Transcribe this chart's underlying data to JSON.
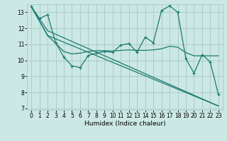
{
  "xlabel": "Humidex (Indice chaleur)",
  "bg_color": "#cce8e4",
  "grid_color": "#aaccca",
  "line_color": "#1a7a6e",
  "xlim": [
    -0.5,
    23.5
  ],
  "ylim": [
    6.9,
    13.5
  ],
  "yticks": [
    7,
    8,
    9,
    10,
    11,
    12,
    13
  ],
  "xticks": [
    0,
    1,
    2,
    3,
    4,
    5,
    6,
    7,
    8,
    9,
    10,
    11,
    12,
    13,
    14,
    15,
    16,
    17,
    18,
    19,
    20,
    21,
    22,
    23
  ],
  "line1_x": [
    0,
    1,
    2,
    3,
    4,
    5,
    6,
    7,
    8,
    9,
    10,
    11,
    12,
    13,
    14,
    15,
    16,
    17,
    18,
    19,
    20,
    21,
    22,
    23
  ],
  "line1_y": [
    13.35,
    12.6,
    12.85,
    11.1,
    10.2,
    9.65,
    9.55,
    10.3,
    10.45,
    10.55,
    10.5,
    10.95,
    11.05,
    10.5,
    11.45,
    11.1,
    13.1,
    13.4,
    13.0,
    10.1,
    9.2,
    10.35,
    9.9,
    7.85
  ],
  "line2_x": [
    0,
    2,
    3,
    4,
    5,
    6,
    7,
    8,
    9,
    10,
    11,
    12,
    13,
    14,
    15,
    16,
    17,
    18,
    19,
    20,
    21,
    22,
    23
  ],
  "line2_y": [
    13.35,
    11.55,
    11.05,
    10.55,
    10.4,
    10.45,
    10.55,
    10.6,
    10.6,
    10.58,
    10.62,
    10.65,
    10.62,
    10.62,
    10.65,
    10.72,
    10.88,
    10.82,
    10.48,
    10.28,
    10.28,
    10.28,
    10.28
  ],
  "line3_x": [
    0,
    2,
    23
  ],
  "line3_y": [
    13.35,
    11.85,
    7.15
  ],
  "line4_x": [
    0,
    2,
    23
  ],
  "line4_y": [
    13.35,
    11.55,
    7.15
  ]
}
